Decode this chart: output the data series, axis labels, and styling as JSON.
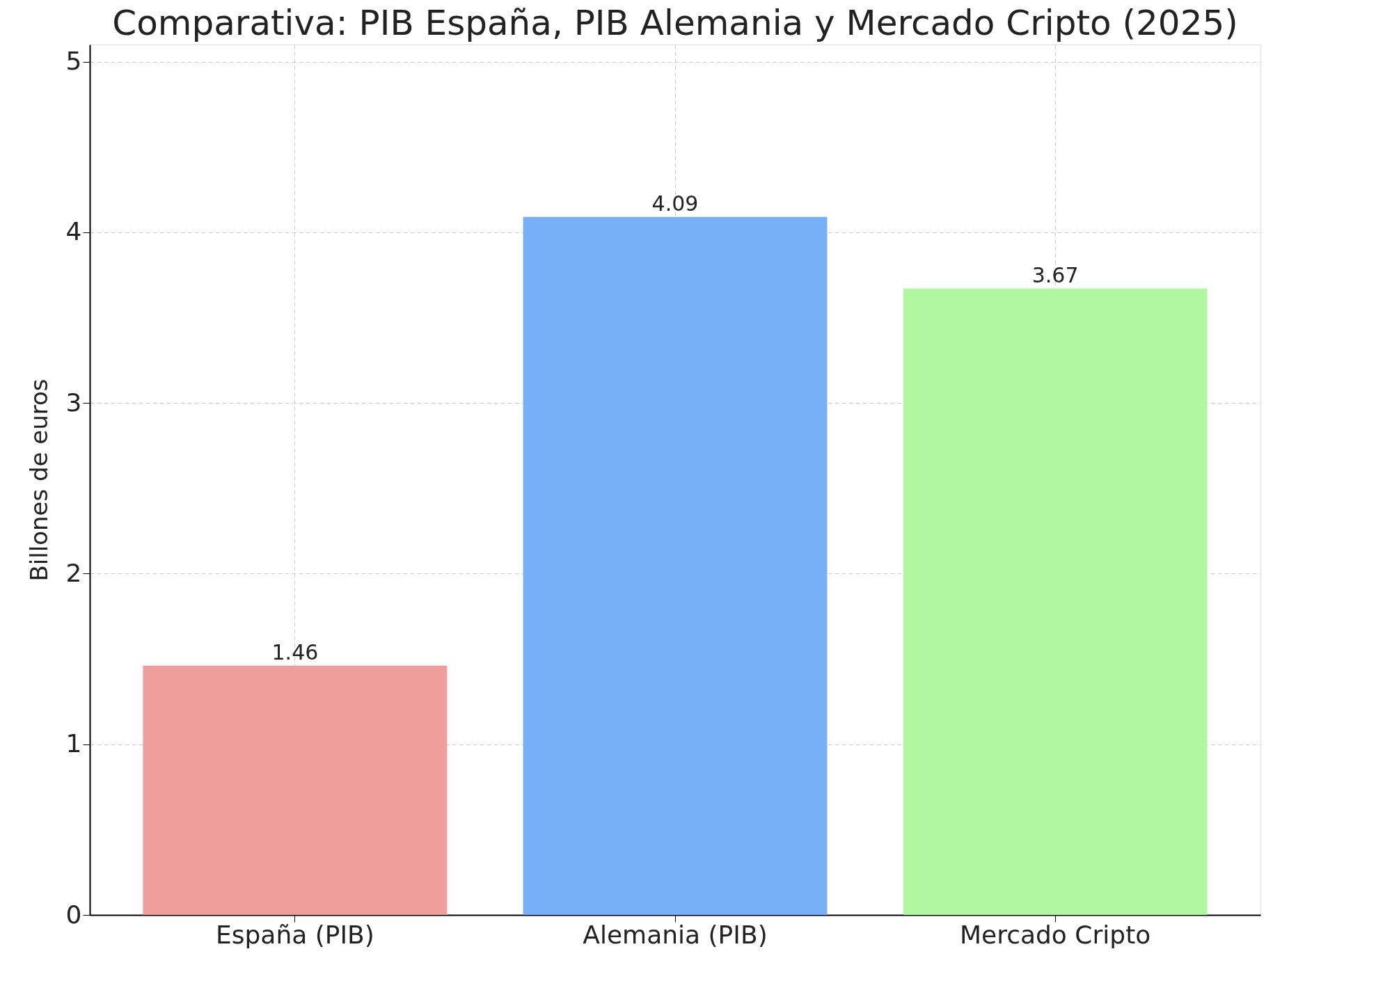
{
  "chart_data": {
    "type": "bar",
    "title": "Comparativa: PIB España, PIB Alemania y Mercado Cripto (2025)",
    "ylabel": "Billones de euros",
    "categories": [
      "España (PIB)",
      "Alemania (PIB)",
      "Mercado Cripto"
    ],
    "values": [
      1.46,
      4.09,
      3.67
    ],
    "colors": [
      "#f09e9c",
      "#78b0f8",
      "#b0f8a0"
    ],
    "ylim": [
      0,
      5.1
    ],
    "yticks": [
      0,
      1,
      2,
      3,
      4,
      5
    ],
    "grid": true,
    "data_labels": true
  }
}
